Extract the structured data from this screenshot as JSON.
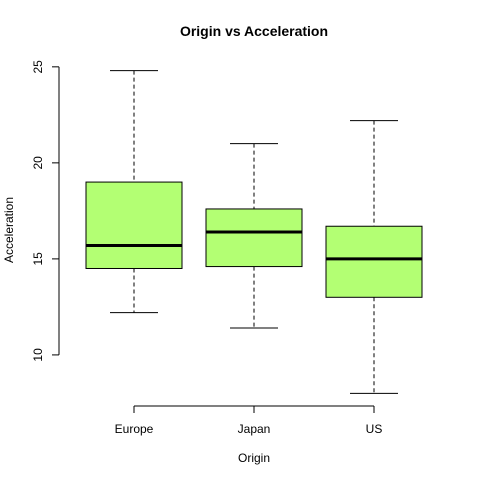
{
  "chart_data": {
    "type": "boxplot",
    "title": "Origin vs Acceleration",
    "xlabel": "Origin",
    "ylabel": "Acceleration",
    "categories": [
      "Europe",
      "Japan",
      "US"
    ],
    "boxes": [
      {
        "category": "Europe",
        "whisker_low": 12.2,
        "q1": 14.5,
        "median": 15.7,
        "q3": 19.0,
        "whisker_high": 24.8
      },
      {
        "category": "Japan",
        "whisker_low": 11.4,
        "q1": 14.6,
        "median": 16.4,
        "q3": 17.6,
        "whisker_high": 21.0
      },
      {
        "category": "US",
        "whisker_low": 8.0,
        "q1": 13.0,
        "median": 15.0,
        "q3": 16.7,
        "whisker_high": 22.2
      }
    ],
    "yticks": [
      10,
      15,
      20,
      25
    ],
    "ylim": [
      7.34,
      25.46
    ],
    "box_color": "#B3FF73",
    "grid": false
  }
}
